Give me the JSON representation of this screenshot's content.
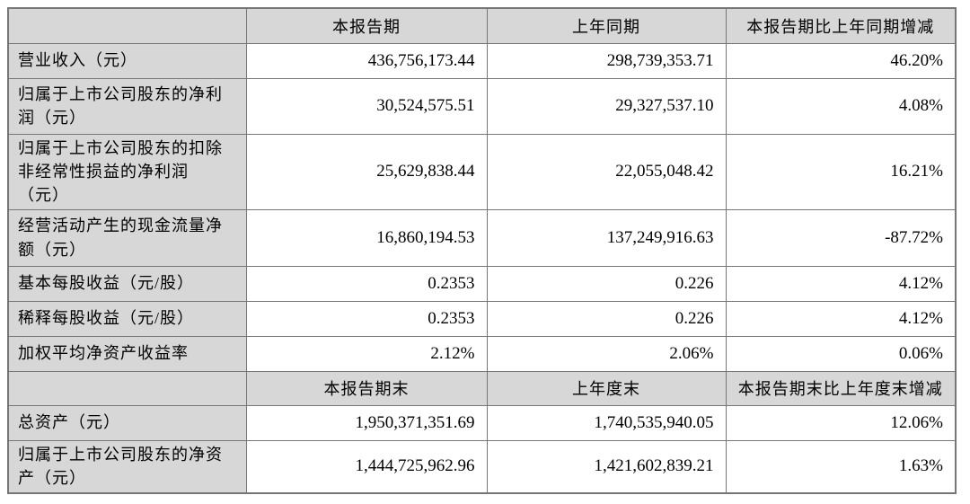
{
  "document": {
    "type": "financial-summary-table",
    "colors": {
      "header_fill": "#d7d7d7",
      "border": "#767676",
      "text": "#000000",
      "background": "#ffffff"
    },
    "section1": {
      "headers": {
        "corner": "",
        "current": "本报告期",
        "prior": "上年同期",
        "change": "本报告期比上年同期增减"
      },
      "rows": [
        {
          "label": "营业收入（元）",
          "current": "436,756,173.44",
          "prior": "298,739,353.71",
          "change": "46.20%"
        },
        {
          "label": "归属于上市公司股东的净利润（元）",
          "current": "30,524,575.51",
          "prior": "29,327,537.10",
          "change": "4.08%"
        },
        {
          "label": "归属于上市公司股东的扣除非经常性损益的净利润（元）",
          "current": "25,629,838.44",
          "prior": "22,055,048.42",
          "change": "16.21%"
        },
        {
          "label": "经营活动产生的现金流量净额（元）",
          "current": "16,860,194.53",
          "prior": "137,249,916.63",
          "change": "-87.72%"
        },
        {
          "label": "基本每股收益（元/股）",
          "current": "0.2353",
          "prior": "0.226",
          "change": "4.12%"
        },
        {
          "label": "稀释每股收益（元/股）",
          "current": "0.2353",
          "prior": "0.226",
          "change": "4.12%"
        },
        {
          "label": "加权平均净资产收益率",
          "current": "2.12%",
          "prior": "2.06%",
          "change": "0.06%"
        }
      ]
    },
    "section2": {
      "headers": {
        "corner": "",
        "current": "本报告期末",
        "prior": "上年度末",
        "change": "本报告期末比上年度末增减"
      },
      "rows": [
        {
          "label": "总资产（元）",
          "current": "1,950,371,351.69",
          "prior": "1,740,535,940.05",
          "change": "12.06%"
        },
        {
          "label": "归属于上市公司股东的净资产（元）",
          "current": "1,444,725,962.96",
          "prior": "1,421,602,839.21",
          "change": "1.63%"
        }
      ]
    }
  }
}
